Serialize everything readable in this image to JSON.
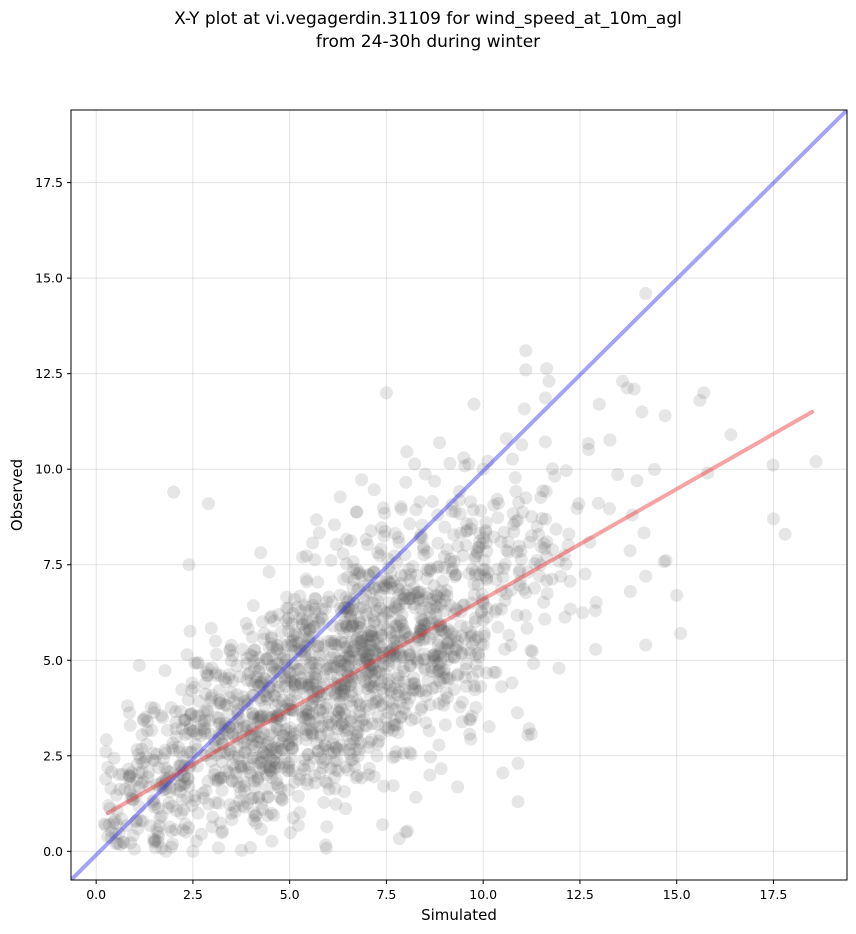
{
  "chart_data": {
    "type": "scatter",
    "title": [
      "X-Y plot at vi.vegagerdin.31109 for wind_speed_at_10m_agl",
      "from 24-30h during winter"
    ],
    "xlabel": "Simulated",
    "ylabel": "Observed",
    "xlim": [
      -0.65,
      19.4
    ],
    "ylim": [
      -0.75,
      19.4
    ],
    "xticks": [
      "0.0",
      "2.5",
      "5.0",
      "7.5",
      "10.0",
      "12.5",
      "15.0",
      "17.5"
    ],
    "yticks": [
      "0.0",
      "2.5",
      "5.0",
      "7.5",
      "10.0",
      "12.5",
      "15.0",
      "17.5"
    ],
    "grid": true,
    "marker_color": "#555555",
    "marker_alpha": 0.15,
    "point_count": 1800,
    "highlight_points": [
      [
        2.0,
        9.4
      ],
      [
        2.9,
        9.1
      ],
      [
        2.4,
        7.5
      ],
      [
        7.5,
        12.0
      ],
      [
        11.1,
        13.1
      ],
      [
        11.1,
        12.6
      ],
      [
        11.7,
        12.3
      ],
      [
        14.2,
        14.6
      ],
      [
        13.6,
        12.3
      ],
      [
        13.9,
        12.1
      ],
      [
        14.1,
        11.5
      ],
      [
        14.7,
        11.4
      ],
      [
        15.6,
        11.8
      ],
      [
        15.7,
        12.0
      ],
      [
        16.4,
        10.9
      ],
      [
        15.8,
        9.9
      ],
      [
        17.5,
        8.7
      ],
      [
        17.8,
        8.3
      ],
      [
        18.6,
        10.2
      ],
      [
        15.0,
        6.7
      ],
      [
        15.1,
        5.7
      ],
      [
        14.2,
        5.4
      ],
      [
        10.9,
        1.3
      ],
      [
        10.9,
        2.3
      ],
      [
        8.0,
        0.5
      ],
      [
        0.3,
        2.2
      ],
      [
        0.4,
        0.5
      ],
      [
        1.8,
        0.0
      ],
      [
        2.5,
        0.0
      ],
      [
        7.4,
        0.7
      ],
      [
        12.9,
        6.3
      ],
      [
        13.0,
        11.7
      ],
      [
        13.8,
        6.8
      ],
      [
        14.2,
        7.2
      ],
      [
        9.5,
        10.3
      ],
      [
        10.6,
        10.8
      ]
    ],
    "series": [
      {
        "type": "line",
        "x": [
          -0.65,
          19.4
        ],
        "y": [
          -0.75,
          19.4
        ],
        "color": "#3333ee",
        "alpha": 0.45
      },
      {
        "type": "line",
        "x": [
          0.3,
          18.5
        ],
        "y": [
          1.0,
          11.5
        ],
        "color": "#ee3333",
        "alpha": 0.45
      }
    ]
  }
}
